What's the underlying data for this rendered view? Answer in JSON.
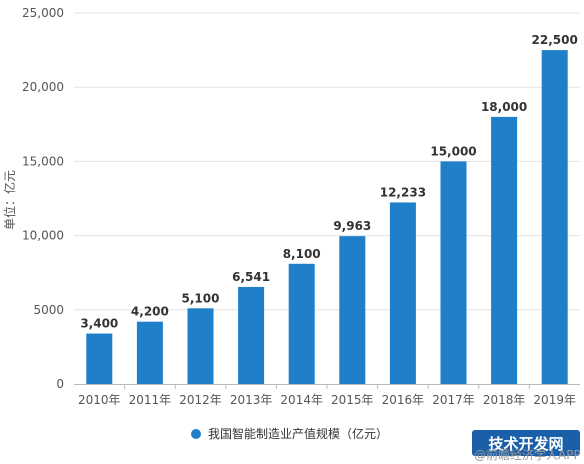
{
  "chart_data": {
    "type": "bar",
    "categories": [
      "2010年",
      "2011年",
      "2012年",
      "2013年",
      "2014年",
      "2015年",
      "2016年",
      "2017年",
      "2018年",
      "2019年"
    ],
    "values": [
      3400,
      4200,
      5100,
      6541,
      8100,
      9963,
      12233,
      15000,
      18000,
      22500
    ],
    "value_labels": [
      "3,400",
      "4,200",
      "5,100",
      "6,541",
      "8,100",
      "9,963",
      "12,233",
      "15,000",
      "18,000",
      "22,500"
    ],
    "ylabel": "单位：亿元",
    "yticks": [
      0,
      5000,
      10000,
      15000,
      20000,
      25000
    ],
    "ytick_labels": [
      "0",
      "5000",
      "10,000",
      "15,000",
      "20,000",
      "25,000"
    ],
    "ylim": [
      0,
      25000
    ],
    "grid": true,
    "legend_position": "bottom-center",
    "series": [
      {
        "name": "我国智能制造业产值规模（亿元）",
        "values": [
          3400,
          4200,
          5100,
          6541,
          8100,
          9963,
          12233,
          15000,
          18000,
          22500
        ]
      }
    ],
    "colors": {
      "bar": "#1f7fc8",
      "grid": "#e3e3e3",
      "axis": "#bbbbbb"
    }
  },
  "watermark": {
    "source_text": "@前瞻经济学人APP",
    "badge_text": "技术开发网"
  }
}
